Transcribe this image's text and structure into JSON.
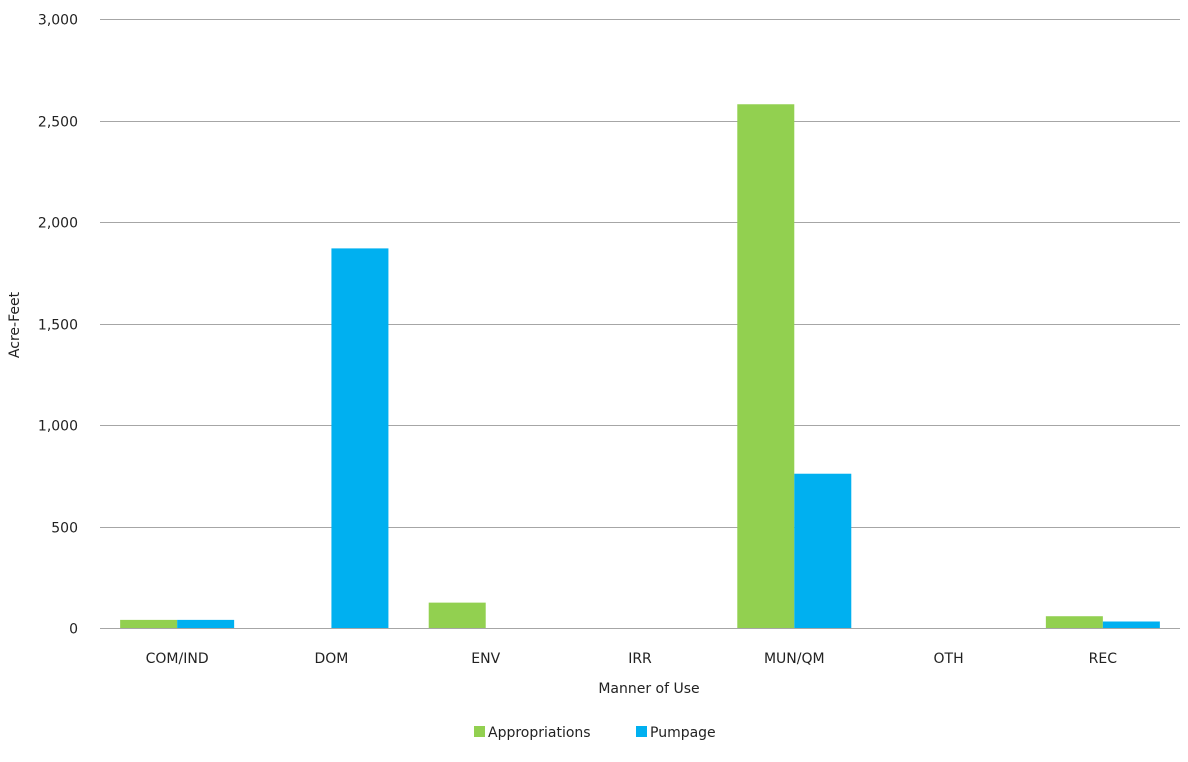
{
  "chart_data": {
    "type": "bar",
    "title": "",
    "xlabel": "Manner of Use",
    "ylabel": "Acre-Feet",
    "ylim": [
      0,
      3000
    ],
    "yticks": [
      0,
      500,
      1000,
      1500,
      2000,
      2500,
      3000
    ],
    "ytick_labels": [
      "0",
      "500",
      "1,000",
      "1,500",
      "2,000",
      "2,500",
      "3,000"
    ],
    "categories": [
      "COM/IND",
      "DOM",
      "ENV",
      "IRR",
      "MUN/QM",
      "OTH",
      "REC"
    ],
    "series": [
      {
        "name": "Appropriations",
        "color": "#92d050",
        "values": [
          40,
          0,
          125,
          0,
          2580,
          0,
          58
        ]
      },
      {
        "name": "Pumpage",
        "color": "#00b0f0",
        "values": [
          40,
          1870,
          0,
          0,
          760,
          0,
          32
        ]
      }
    ],
    "grid": true,
    "legend_position": "bottom-center"
  }
}
